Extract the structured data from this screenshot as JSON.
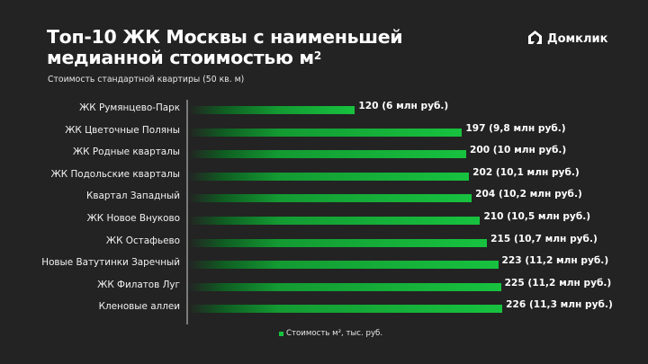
{
  "header": {
    "title_line1": "Топ-10 ЖК Москвы с наименьшей",
    "title_line2": "медианной стоимостью м",
    "title_sup": "2",
    "subtitle": "Стоимость стандартной квартиры (50 кв. м)"
  },
  "logo": {
    "text": "Домклик",
    "icon": "domclick-house-icon"
  },
  "legend": {
    "label": "Стоимость м², тыс. руб.",
    "color": "#17c23f"
  },
  "colors": {
    "background": "#232323",
    "bar": "#17c23f",
    "axis": "#7a7a7a"
  },
  "chart_data": {
    "type": "bar",
    "orientation": "horizontal",
    "title": "Топ-10 ЖК Москвы с наименьшей медианной стоимостью м²",
    "subtitle": "Стоимость стандартной квартиры (50 кв. м)",
    "categories": [
      "ЖК Румянцево-Парк",
      "ЖК Цветочные Поляны",
      "ЖК Родные кварталы",
      "ЖК Подольские кварталы",
      "Квартал Западный",
      "ЖК Новое Внуково",
      "ЖК Остафьево",
      "Новые Ватутинки Заречный",
      "ЖК Филатов Луг",
      "Кленовые аллеи"
    ],
    "series": [
      {
        "name": "Стоимость м², тыс. руб.",
        "values": [
          120,
          197,
          200,
          202,
          204,
          210,
          215,
          223,
          225,
          226
        ]
      }
    ],
    "data_labels": [
      "120 (6 млн руб.)",
      "197 (9,8 млн руб.)",
      "200  (10 млн руб.)",
      "202 (10,1 млн руб.)",
      "204 (10,2 млн руб.)",
      "210 (10,5 млн руб.)",
      "215 (10,7 млн руб.)",
      "223 (11,2 млн руб.)",
      "225 (11,2 млн руб.)",
      "226 (11,3 млн руб.)"
    ],
    "xlabel": "",
    "ylabel": "",
    "grid": false,
    "legend_position": "bottom"
  }
}
